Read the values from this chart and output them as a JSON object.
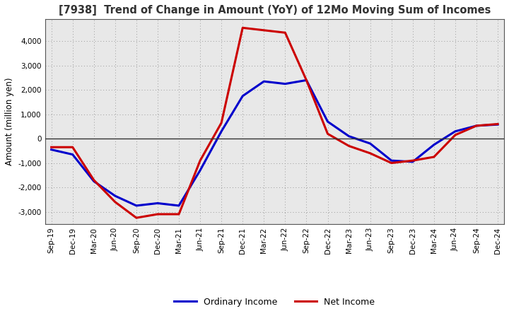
{
  "title": "[7938]  Trend of Change in Amount (YoY) of 12Mo Moving Sum of Incomes",
  "ylabel": "Amount (million yen)",
  "x_labels": [
    "Sep-19",
    "Dec-19",
    "Mar-20",
    "Jun-20",
    "Sep-20",
    "Dec-20",
    "Mar-21",
    "Jun-21",
    "Sep-21",
    "Dec-21",
    "Mar-22",
    "Jun-22",
    "Sep-22",
    "Dec-22",
    "Mar-23",
    "Jun-23",
    "Sep-23",
    "Dec-23",
    "Mar-24",
    "Jun-24",
    "Sep-24",
    "Dec-24"
  ],
  "ordinary_income": [
    -450,
    -650,
    -1750,
    -2350,
    -2750,
    -2650,
    -2750,
    -1300,
    300,
    1750,
    2350,
    2250,
    2400,
    700,
    100,
    -200,
    -900,
    -950,
    -250,
    300,
    530,
    580
  ],
  "net_income": [
    -350,
    -350,
    -1700,
    -2600,
    -3250,
    -3100,
    -3100,
    -900,
    650,
    4550,
    4450,
    4350,
    2400,
    200,
    -300,
    -600,
    -1000,
    -900,
    -750,
    150,
    530,
    600
  ],
  "ordinary_color": "#0000cc",
  "net_color": "#cc0000",
  "bg_color": "#ffffff",
  "plot_bg_color": "#e8e8e8",
  "grid_color": "#999999",
  "zero_line_color": "#333333",
  "ylim": [
    -3500,
    4900
  ],
  "yticks": [
    -3000,
    -2000,
    -1000,
    0,
    1000,
    2000,
    3000,
    4000
  ],
  "legend_ordinary": "Ordinary Income",
  "legend_net": "Net Income",
  "line_width": 2.2,
  "title_fontsize": 10.5,
  "tick_fontsize": 7.5,
  "ylabel_fontsize": 8.5
}
